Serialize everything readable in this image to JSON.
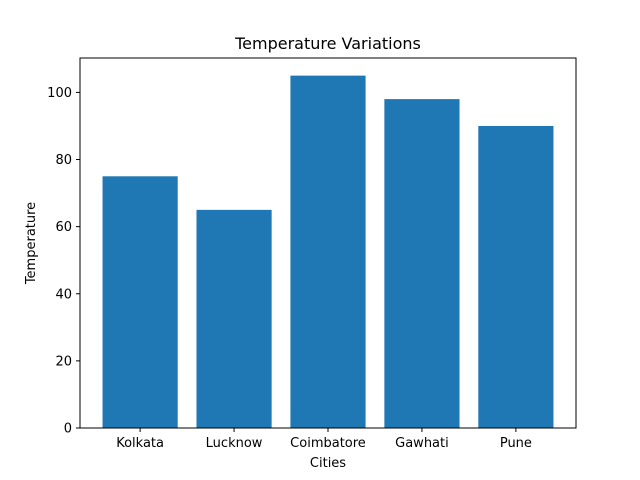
{
  "chart_data": {
    "type": "bar",
    "title": "Temperature Variations",
    "xlabel": "Cities",
    "ylabel": "Temperature",
    "categories": [
      "Kolkata",
      "Lucknow",
      "Coimbatore",
      "Gawhati",
      "Pune"
    ],
    "values": [
      75,
      65,
      105,
      98,
      90
    ],
    "ylim": [
      0,
      110.25
    ],
    "yticks": [
      0,
      20,
      40,
      60,
      80,
      100
    ],
    "bar_color": "#1f77b4",
    "grid": false,
    "legend": "none"
  }
}
